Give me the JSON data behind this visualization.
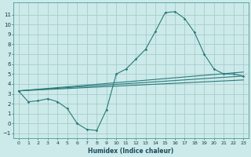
{
  "xlabel": "Humidex (Indice chaleur)",
  "bg_color": "#cceaea",
  "grid_color": "#aacccc",
  "line_color": "#2a7a7a",
  "xlim": [
    -0.5,
    23.5
  ],
  "ylim": [
    -1.5,
    12.2
  ],
  "xticks": [
    0,
    1,
    2,
    3,
    4,
    5,
    6,
    7,
    8,
    9,
    10,
    11,
    12,
    13,
    14,
    15,
    16,
    17,
    18,
    19,
    20,
    21,
    22,
    23
  ],
  "yticks": [
    -1,
    0,
    1,
    2,
    3,
    4,
    5,
    6,
    7,
    8,
    9,
    10,
    11
  ],
  "main_x": [
    0,
    1,
    2,
    3,
    4,
    5,
    6,
    7,
    8,
    9,
    10,
    11,
    12,
    13,
    14,
    15,
    16,
    17,
    18,
    19,
    20,
    21,
    22,
    23
  ],
  "main_y": [
    3.3,
    2.2,
    2.3,
    2.5,
    2.2,
    1.5,
    0.0,
    -0.6,
    -0.7,
    1.4,
    5.0,
    5.5,
    6.5,
    7.5,
    9.3,
    11.2,
    11.3,
    10.6,
    9.2,
    7.0,
    5.5,
    5.0,
    5.0,
    4.8
  ],
  "extra_lines": [
    {
      "x": [
        0,
        23
      ],
      "y": [
        3.3,
        4.8
      ]
    },
    {
      "x": [
        0,
        23
      ],
      "y": [
        3.3,
        5.2
      ]
    },
    {
      "x": [
        0,
        23
      ],
      "y": [
        3.3,
        4.4
      ]
    }
  ]
}
